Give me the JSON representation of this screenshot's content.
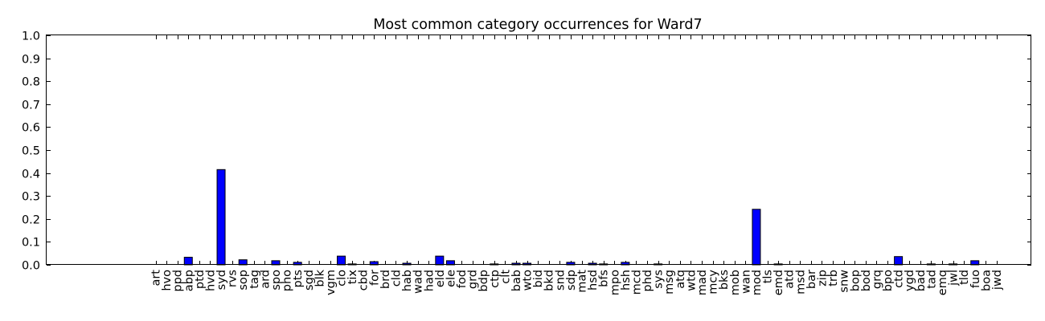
{
  "chart_data": {
    "type": "bar",
    "title": "Most common category occurrences for Ward7",
    "xlabel": "",
    "ylabel": "",
    "ylim": [
      0,
      1.0
    ],
    "yticks": [
      "0.0",
      "0.1",
      "0.2",
      "0.3",
      "0.4",
      "0.5",
      "0.6",
      "0.7",
      "0.8",
      "0.9",
      "1.0"
    ],
    "bar_color": "#0000ff",
    "grid": false,
    "categories": [
      "art",
      "hvo",
      "ppd",
      "abp",
      "ptd",
      "hvd",
      "syd",
      "rvs",
      "sop",
      "tag",
      "ard",
      "spo",
      "pho",
      "pts",
      "sgd",
      "blk",
      "vgm",
      "clo",
      "tix",
      "cbd",
      "for",
      "brd",
      "cld",
      "hab",
      "wad",
      "had",
      "eld",
      "ele",
      "fod",
      "grd",
      "bdp",
      "ctp",
      "clt",
      "bab",
      "wto",
      "bid",
      "bkd",
      "snd",
      "sdp",
      "mat",
      "hsd",
      "bfs",
      "mpo",
      "hsh",
      "mcd",
      "phd",
      "sys",
      "msg",
      "atq",
      "wtd",
      "mad",
      "mcy",
      "bks",
      "mob",
      "wan",
      "mod",
      "tls",
      "emd",
      "atd",
      "msd",
      "bar",
      "zip",
      "trb",
      "snw",
      "bop",
      "bod",
      "grq",
      "bpo",
      "ctd",
      "ygd",
      "bad",
      "tad",
      "emq",
      "jwl",
      "tld",
      "fuo",
      "boa",
      "jwd"
    ],
    "values": [
      0.0,
      0.0,
      0.0,
      0.033,
      0.0,
      0.0,
      0.415,
      0.0,
      0.022,
      0.0,
      0.0,
      0.018,
      0.0,
      0.011,
      0.0,
      0.0,
      0.0,
      0.038,
      0.004,
      0.0,
      0.014,
      0.0,
      0.0,
      0.007,
      0.0,
      0.0,
      0.038,
      0.018,
      0.0,
      0.0,
      0.0,
      0.004,
      0.0,
      0.007,
      0.007,
      0.0,
      0.0,
      0.0,
      0.011,
      0.0,
      0.007,
      0.004,
      0.0,
      0.011,
      0.0,
      0.0,
      0.004,
      0.0,
      0.0,
      0.0,
      0.0,
      0.0,
      0.0,
      0.0,
      0.0,
      0.242,
      0.0,
      0.004,
      0.0,
      0.0,
      0.0,
      0.0,
      0.0,
      0.0,
      0.0,
      0.0,
      0.0,
      0.0,
      0.036,
      0.0,
      0.0,
      0.004,
      0.0,
      0.004,
      0.0,
      0.018,
      0.0,
      0.0
    ]
  }
}
